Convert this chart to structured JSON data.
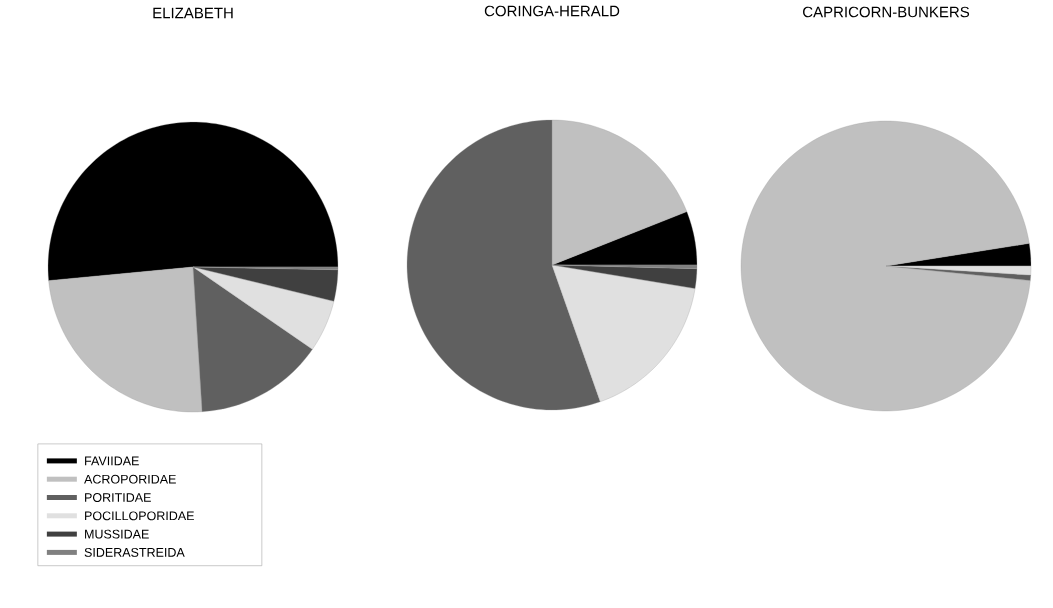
{
  "chart_data": [
    {
      "type": "pie",
      "title": "ELIZABETH",
      "categories": [
        "FAVIIDAE",
        "ACROPORIDAE",
        "PORITIDAE",
        "POCILLOPORIDAE",
        "MUSSIDAE",
        "SIDERASTREIDA"
      ],
      "values": [
        51.5,
        24.5,
        14.4,
        5.8,
        3.5,
        0.3
      ],
      "colors": [
        "#000000",
        "#c0c0c0",
        "#606060",
        "#e0e0e0",
        "#404040",
        "#808080"
      ],
      "legend": "bottom left"
    },
    {
      "type": "pie",
      "title": "CORINGA-HERALD",
      "categories": [
        null,
        null,
        null,
        null,
        null,
        null
      ],
      "values": [
        6.0,
        19.0,
        55.4,
        17.0,
        2.2,
        0.4
      ],
      "colors": [
        "#000000",
        "#c0c0c0",
        "#606060",
        "#e0e0e0",
        "#404040",
        "#808080"
      ]
    },
    {
      "type": "pie",
      "title": "CAPRICORN-BUNKERS",
      "categories": [
        null,
        null,
        null,
        null,
        null,
        null
      ],
      "values": [
        2.5,
        95.9,
        0.6,
        1.0,
        null,
        null
      ],
      "colors": [
        "#000000",
        "#c0c0c0",
        "#606060",
        "#e0e0e0",
        "#404040",
        "#808080"
      ]
    }
  ]
}
